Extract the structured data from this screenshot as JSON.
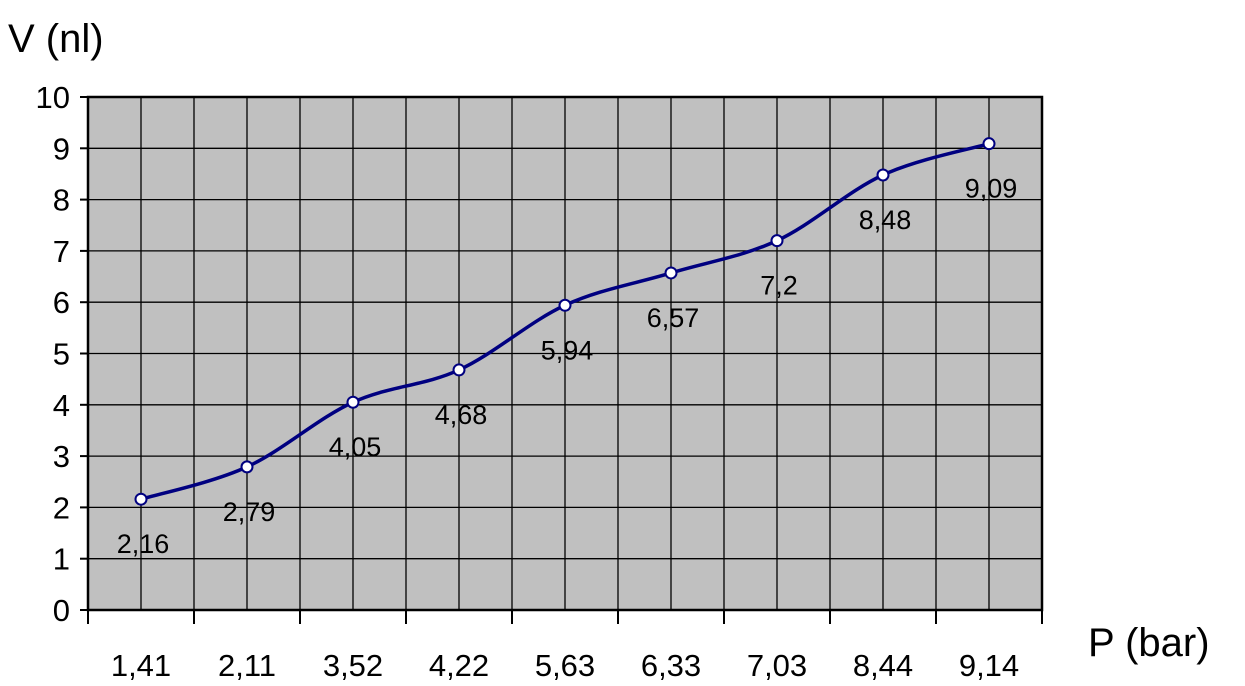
{
  "chart_data": {
    "type": "line",
    "title": "",
    "ylabel": "V (nl)",
    "xlabel": "P (bar)",
    "categories": [
      "1,41",
      "2,11",
      "3,52",
      "4,22",
      "5,63",
      "6,33",
      "7,03",
      "8,44",
      "9,14"
    ],
    "series": [
      {
        "values": [
          2.16,
          2.79,
          4.05,
          4.68,
          5.94,
          6.57,
          7.2,
          8.48,
          9.09
        ]
      }
    ],
    "data_labels": [
      "2,16",
      "2,79",
      "4,05",
      "4,68",
      "5,94",
      "6,57",
      "7,2",
      "8,48",
      "9,09"
    ],
    "yticks": [
      "0",
      "1",
      "2",
      "3",
      "4",
      "5",
      "6",
      "7",
      "8",
      "9",
      "10"
    ],
    "ylim": [
      0,
      10
    ],
    "grid": true,
    "legend": "none",
    "colors": {
      "line": "#000080",
      "plot_background": "#c0c0c0",
      "grid": "#000000",
      "marker_fill": "#ffffff"
    }
  }
}
